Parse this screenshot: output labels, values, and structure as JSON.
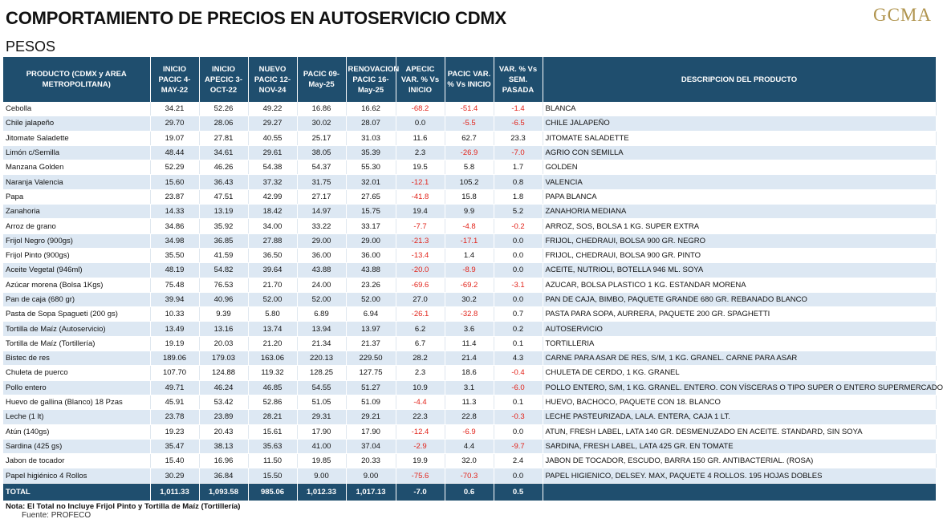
{
  "header": {
    "title": "COMPORTAMIENTO DE PRECIOS EN AUTOSERVICIO CDMX",
    "subtitle": "PESOS",
    "logo": "GCMA"
  },
  "columns": [
    "PRODUCTO (CDMX y AREA METROPOLITANA)",
    "INICIO PACIC 4-MAY-22",
    "INICIO APECIC 3-OCT-22",
    "NUEVO PACIC 12-NOV-24",
    "PACIC 09-May-25",
    "RENOVACION PACIC 16-May-25",
    "APECIC VAR. % Vs INICIO",
    "PACIC VAR. % Vs INICIO",
    "VAR. % Vs SEM. PASADA",
    "DESCRIPCION DEL PRODUCTO"
  ],
  "rows": [
    [
      "Cebolla",
      "34.21",
      "52.26",
      "49.22",
      "16.86",
      "16.62",
      "-68.2",
      "-51.4",
      "-1.4",
      "BLANCA"
    ],
    [
      "Chile jalapeño",
      "29.70",
      "28.06",
      "29.27",
      "30.02",
      "28.07",
      "0.0",
      "-5.5",
      "-6.5",
      "CHILE JALAPEÑO"
    ],
    [
      "Jitomate Saladette",
      "19.07",
      "27.81",
      "40.55",
      "25.17",
      "31.03",
      "11.6",
      "62.7",
      "23.3",
      "JITOMATE SALADETTE"
    ],
    [
      "Limón c/Semilla",
      "48.44",
      "34.61",
      "29.61",
      "38.05",
      "35.39",
      "2.3",
      "-26.9",
      "-7.0",
      "AGRIO CON SEMILLA"
    ],
    [
      "Manzana Golden",
      "52.29",
      "46.26",
      "54.38",
      "54.37",
      "55.30",
      "19.5",
      "5.8",
      "1.7",
      "GOLDEN"
    ],
    [
      "Naranja Valencia",
      "15.60",
      "36.43",
      "37.32",
      "31.75",
      "32.01",
      "-12.1",
      "105.2",
      "0.8",
      "VALENCIA"
    ],
    [
      "Papa",
      "23.87",
      "47.51",
      "42.99",
      "27.17",
      "27.65",
      "-41.8",
      "15.8",
      "1.8",
      "PAPA BLANCA"
    ],
    [
      "Zanahoria",
      "14.33",
      "13.19",
      "18.42",
      "14.97",
      "15.75",
      "19.4",
      "9.9",
      "5.2",
      "ZANAHORIA MEDIANA"
    ],
    [
      "Arroz de grano",
      "34.86",
      "35.92",
      "34.00",
      "33.22",
      "33.17",
      "-7.7",
      "-4.8",
      "-0.2",
      "ARROZ, SOS, BOLSA 1 KG. SUPER EXTRA"
    ],
    [
      "Frijol Negro (900gs)",
      "34.98",
      "36.85",
      "27.88",
      "29.00",
      "29.00",
      "-21.3",
      "-17.1",
      "0.0",
      "FRIJOL, CHEDRAUI, BOLSA 900 GR. NEGRO"
    ],
    [
      "Frijol Pinto (900gs)",
      "35.50",
      "41.59",
      "36.50",
      "36.00",
      "36.00",
      "-13.4",
      "1.4",
      "0.0",
      "FRIJOL, CHEDRAUI, BOLSA 900 GR. PINTO"
    ],
    [
      "Aceite Vegetal (946ml)",
      "48.19",
      "54.82",
      "39.64",
      "43.88",
      "43.88",
      "-20.0",
      "-8.9",
      "0.0",
      "ACEITE, NUTRIOLI, BOTELLA 946 ML. SOYA"
    ],
    [
      "Azúcar morena (Bolsa 1Kgs)",
      "75.48",
      "76.53",
      "21.70",
      "24.00",
      "23.26",
      "-69.6",
      "-69.2",
      "-3.1",
      "AZUCAR, BOLSA PLASTICO 1 KG. ESTANDAR MORENA"
    ],
    [
      "Pan de caja (680 gr)",
      "39.94",
      "40.96",
      "52.00",
      "52.00",
      "52.00",
      "27.0",
      "30.2",
      "0.0",
      "PAN DE CAJA, BIMBO, PAQUETE GRANDE 680 GR. REBANADO BLANCO"
    ],
    [
      "Pasta de Sopa Spagueti (200 gs)",
      "10.33",
      "9.39",
      "5.80",
      "6.89",
      "6.94",
      "-26.1",
      "-32.8",
      "0.7",
      "PASTA PARA SOPA, AURRERA, PAQUETE 200 GR. SPAGHETTI"
    ],
    [
      "Tortilla de Maíz (Autoservicio)",
      "13.49",
      "13.16",
      "13.74",
      "13.94",
      "13.97",
      "6.2",
      "3.6",
      "0.2",
      "AUTOSERVICIO"
    ],
    [
      "Tortilla de Maíz (Tortillería)",
      "19.19",
      "20.03",
      "21.20",
      "21.34",
      "21.37",
      "6.7",
      "11.4",
      "0.1",
      "TORTILLERIA"
    ],
    [
      "Bistec de res",
      "189.06",
      "179.03",
      "163.06",
      "220.13",
      "229.50",
      "28.2",
      "21.4",
      "4.3",
      "CARNE PARA ASAR DE RES, S/M, 1 KG. GRANEL. CARNE PARA ASAR"
    ],
    [
      "Chuleta de puerco",
      "107.70",
      "124.88",
      "119.32",
      "128.25",
      "127.75",
      "2.3",
      "18.6",
      "-0.4",
      "CHULETA DE CERDO, 1 KG. GRANEL"
    ],
    [
      "Pollo entero",
      "49.71",
      "46.24",
      "46.85",
      "54.55",
      "51.27",
      "10.9",
      "3.1",
      "-6.0",
      "POLLO ENTERO, S/M, 1 KG. GRANEL. ENTERO. CON VÍSCERAS O TIPO SUPER O ENTERO SUPERMERCADO"
    ],
    [
      "Huevo de gallina (Blanco) 18 Pzas",
      "45.91",
      "53.42",
      "52.86",
      "51.05",
      "51.09",
      "-4.4",
      "11.3",
      "0.1",
      "HUEVO, BACHOCO, PAQUETE CON 18. BLANCO"
    ],
    [
      "Leche (1 lt)",
      "23.78",
      "23.89",
      "28.21",
      "29.31",
      "29.21",
      "22.3",
      "22.8",
      "-0.3",
      "LECHE PASTEURIZADA, LALA. ENTERA, CAJA 1 LT."
    ],
    [
      "Atún (140gs)",
      "19.23",
      "20.43",
      "15.61",
      "17.90",
      "17.90",
      "-12.4",
      "-6.9",
      "0.0",
      "ATUN, FRESH LABEL, LATA 140 GR. DESMENUZADO EN ACEITE. STANDARD, SIN SOYA"
    ],
    [
      "Sardina (425 gs)",
      "35.47",
      "38.13",
      "35.63",
      "41.00",
      "37.04",
      "-2.9",
      "4.4",
      "-9.7",
      "SARDINA, FRESH LABEL, LATA 425 GR. EN TOMATE"
    ],
    [
      "Jabon de tocador",
      "15.40",
      "16.96",
      "11.50",
      "19.85",
      "20.33",
      "19.9",
      "32.0",
      "2.4",
      "JABON DE TOCADOR, ESCUDO, BARRA 150 GR. ANTIBACTERIAL. (ROSA)"
    ],
    [
      "Papel higiénico 4 Rollos",
      "30.29",
      "36.84",
      "15.50",
      "9.00",
      "9.00",
      "-75.6",
      "-70.3",
      "0.0",
      "PAPEL HIGIENICO, DELSEY. MAX, PAQUETE 4 ROLLOS. 195 HOJAS DOBLES"
    ]
  ],
  "total": [
    "TOTAL",
    "1,011.33",
    "1,093.58",
    "985.06",
    "1,012.33",
    "1,017.13",
    "-7.0",
    "0.6",
    "0.5",
    ""
  ],
  "footer": {
    "note": "Nota: El Total no Incluye Frijol Pinto y Tortilla de Maíz (Tortillería)",
    "source": "Fuente: PROFECO"
  },
  "colors": {
    "header_bg": "#1f4e6e",
    "stripe": "#dde8f3",
    "negative": "#e2231a",
    "logo": "#b0944e"
  }
}
